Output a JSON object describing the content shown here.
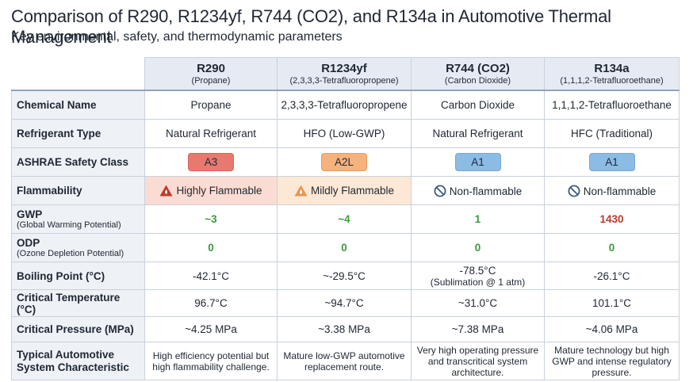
{
  "header": {
    "title": "Comparison of R290, R1234yf, R744 (CO2), and R134a in Automotive Thermal Management",
    "subtitle": "Key environmental, safety, and thermodynamic parameters"
  },
  "table": {
    "columns": [
      {
        "name": "R290",
        "sub": "(Propane)"
      },
      {
        "name": "R1234yf",
        "sub": "(2,3,3,3-Tetrafluoropropene)"
      },
      {
        "name": "R744 (CO2)",
        "sub": "(Carbon Dioxide)"
      },
      {
        "name": "R134a",
        "sub": "(1,1,1,2-Tetrafluoroethane)"
      }
    ],
    "rows": [
      {
        "label": "Chemical Name",
        "cells": [
          "Propane",
          "2,3,3,3-Tetrafluoropropene",
          "Carbon Dioxide",
          "1,1,1,2-Tetrafluoroethane"
        ]
      },
      {
        "label": "Refrigerant Type",
        "cells": [
          "Natural Refrigerant",
          "HFO (Low-GWP)",
          "Natural Refrigerant",
          "HFC (Traditional)"
        ]
      },
      {
        "label": "ASHRAE Safety Class",
        "cells": [
          "A3",
          "A2L",
          "A1",
          "A1"
        ]
      },
      {
        "label": "Flammability",
        "cells": [
          "Highly Flammable",
          "Mildly Flammable",
          "Non-flammable",
          "Non-flammable"
        ]
      },
      {
        "label": "GWP",
        "sublabel": "(Global Warming Potential)",
        "cells": [
          "~3",
          "~4",
          "1",
          "1430"
        ]
      },
      {
        "label": "ODP",
        "sublabel": "(Ozone Depletion Potential)",
        "cells": [
          "0",
          "0",
          "0",
          "0"
        ]
      },
      {
        "label": "Boiling Point (°C)",
        "cells": [
          "-42.1°C",
          "~-29.5°C",
          {
            "text": "-78.5°C",
            "note": "(Sublimation @ 1 atm)"
          },
          "-26.1°C"
        ]
      },
      {
        "label": "Critical Temperature (°C)",
        "cells": [
          "96.7°C",
          "~94.7°C",
          "~31.0°C",
          "101.1°C"
        ]
      },
      {
        "label": "Critical Pressure (MPa)",
        "cells": [
          "~4.25 MPa",
          "~3.38 MPa",
          "~7.38 MPa",
          "~4.06 MPa"
        ]
      },
      {
        "label": "Typical Automotive System Characteristic",
        "cells": [
          "High efficiency potential but high flammability challenge.",
          "Mature low-GWP automotive replacement route.",
          "Very high operating pressure and transcritical system architecture.",
          "Mature technology but high GWP and intense regulatory pressure."
        ]
      }
    ]
  }
}
